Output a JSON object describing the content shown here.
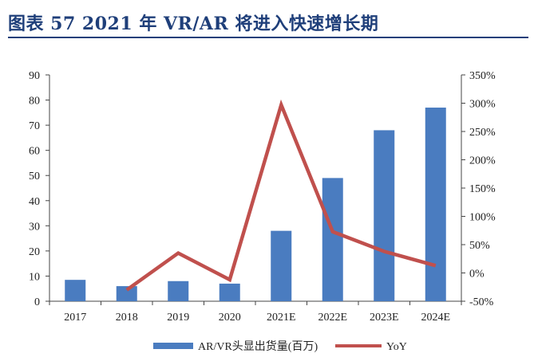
{
  "header": {
    "title": "图表 57   2021 年 VR/AR 将进入快速增长期"
  },
  "chart_data": {
    "type": "bar",
    "categories": [
      "2017",
      "2018",
      "2019",
      "2020",
      "2021E",
      "2022E",
      "2023E",
      "2024E"
    ],
    "series": [
      {
        "name": "AR/VR头显出货量(百万)",
        "type": "bar",
        "axis": "left",
        "values": [
          8.5,
          6.0,
          8.0,
          7.0,
          28.0,
          49.0,
          68.0,
          77.0
        ],
        "color": "#4a7cc0"
      },
      {
        "name": "YoY",
        "type": "line",
        "axis": "right",
        "values": [
          null,
          -30,
          35,
          -12,
          297,
          73,
          38,
          13
        ],
        "color": "#c0504d"
      }
    ],
    "y_left": {
      "min": 0,
      "max": 90,
      "step": 10,
      "ticks": [
        "0",
        "10",
        "20",
        "30",
        "40",
        "50",
        "60",
        "70",
        "80",
        "90"
      ]
    },
    "y_right": {
      "min": -50,
      "max": 350,
      "step": 50,
      "ticks": [
        "-50%",
        "0%",
        "50%",
        "100%",
        "150%",
        "200%",
        "250%",
        "300%",
        "350%"
      ]
    },
    "grid": false,
    "legend": "bottom"
  }
}
